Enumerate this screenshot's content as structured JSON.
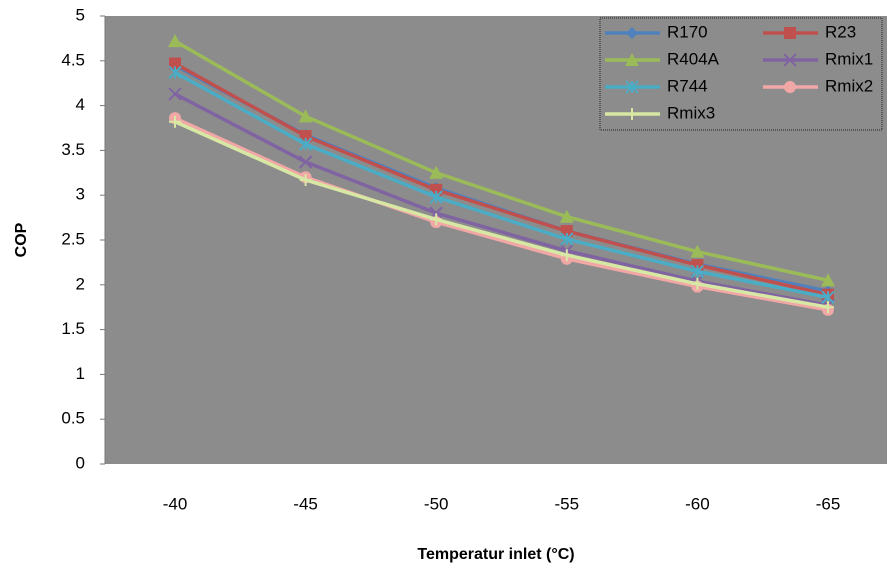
{
  "chart_data": {
    "type": "line",
    "xlabel": "Temperatur inlet (°C)",
    "ylabel": "COP",
    "categories": [
      "-40",
      "-45",
      "-50",
      "-55",
      "-60",
      "-65"
    ],
    "ylim": [
      0,
      5
    ],
    "yticks": [
      0,
      0.5,
      1,
      1.5,
      2,
      2.5,
      3,
      3.5,
      4,
      4.5,
      5
    ],
    "grid": false,
    "legend": "upper right",
    "series": [
      {
        "name": "R170",
        "color": "#4f81bd",
        "marker": "diamond",
        "values": [
          4.45,
          3.67,
          3.08,
          2.6,
          2.23,
          1.93
        ]
      },
      {
        "name": "R23",
        "color": "#c0504d",
        "marker": "square",
        "values": [
          4.47,
          3.66,
          3.06,
          2.6,
          2.22,
          1.89
        ]
      },
      {
        "name": "R404A",
        "color": "#9bbb59",
        "marker": "triangle",
        "values": [
          4.72,
          3.88,
          3.25,
          2.76,
          2.37,
          2.05
        ]
      },
      {
        "name": "Rmix1",
        "color": "#8064a2",
        "marker": "x",
        "values": [
          4.13,
          3.37,
          2.8,
          2.38,
          2.04,
          1.77
        ]
      },
      {
        "name": "R744",
        "color": "#4bacc6",
        "marker": "star",
        "values": [
          4.37,
          3.57,
          2.98,
          2.51,
          2.15,
          1.86
        ]
      },
      {
        "name": "Rmix2",
        "color": "#f2a7a7",
        "marker": "circle",
        "values": [
          3.86,
          3.2,
          2.7,
          2.29,
          1.98,
          1.72
        ]
      },
      {
        "name": "Rmix3",
        "color": "#d7e8a4",
        "marker": "plus",
        "values": [
          3.82,
          3.17,
          2.73,
          2.33,
          2.01,
          1.75
        ]
      }
    ]
  }
}
